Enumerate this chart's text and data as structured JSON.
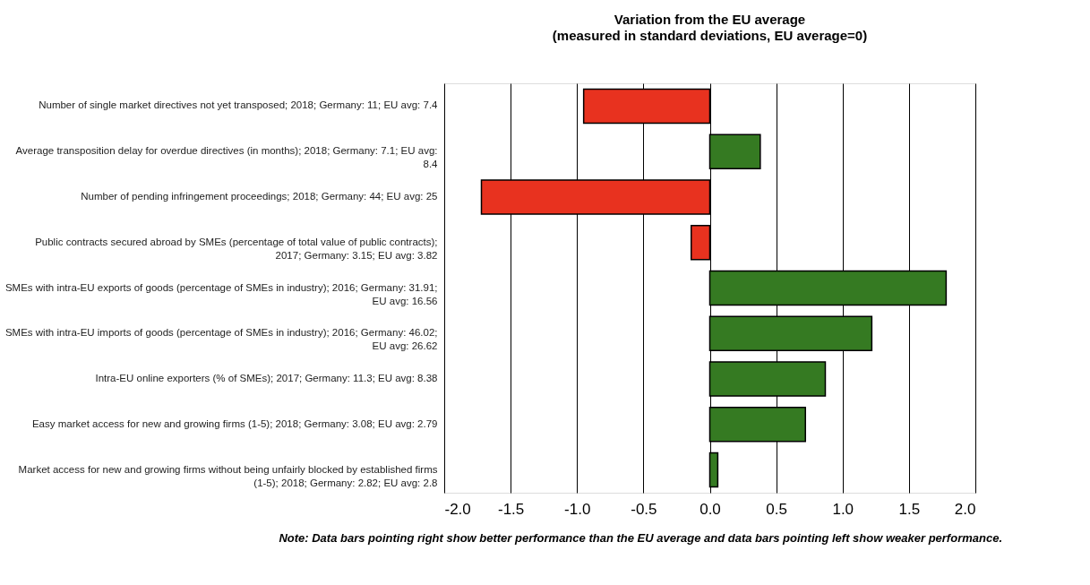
{
  "chart_data": {
    "type": "bar",
    "orientation": "horizontal",
    "title": "Variation from the EU average",
    "subtitle": "(measured in standard deviations, EU average=0)",
    "categories": [
      "Number of single market directives not yet transposed; 2018; Germany: 11; EU avg: 7.4",
      "Average transposition delay for overdue directives (in months); 2018; Germany: 7.1; EU avg: 8.4",
      "Number of pending infringement proceedings; 2018; Germany: 44; EU avg: 25",
      "Public contracts secured abroad by SMEs (percentage of total value of public contracts); 2017; Germany: 3.15; EU avg: 3.82",
      "SMEs with intra-EU exports of goods (percentage of SMEs in industry); 2016; Germany: 31.91; EU avg: 16.56",
      "SMEs with intra-EU imports of goods (percentage of SMEs in industry); 2016; Germany: 46.02; EU avg: 26.62",
      "Intra-EU online exporters (% of SMEs); 2017; Germany: 11.3; EU avg: 8.38",
      "Easy market access for new and growing firms (1-5); 2018; Germany: 3.08; EU avg: 2.79",
      "Market access for new and growing firms without being unfairly blocked by established firms (1-5); 2018; Germany: 2.82; EU avg: 2.8"
    ],
    "values": [
      -0.95,
      0.38,
      -1.72,
      -0.14,
      1.78,
      1.22,
      0.87,
      0.72,
      0.06
    ],
    "colors": [
      "#e8321f",
      "#357a22",
      "#e8321f",
      "#e8321f",
      "#357a22",
      "#357a22",
      "#357a22",
      "#357a22",
      "#357a22"
    ],
    "xlim": [
      -2.0,
      2.0
    ],
    "xticks": [
      {
        "value": -2,
        "label": "-2.0"
      },
      {
        "value": -1.5,
        "label": "-1.5"
      },
      {
        "value": -1,
        "label": "-1.0"
      },
      {
        "value": -0.5,
        "label": "-0.5"
      },
      {
        "value": 0,
        "label": "0.0"
      },
      {
        "value": 0.5,
        "label": "0.5"
      },
      {
        "value": 1,
        "label": "1.0"
      },
      {
        "value": 1.5,
        "label": "1.5"
      },
      {
        "value": 2,
        "label": "2.0"
      }
    ],
    "grid": "x",
    "annotations": [
      "Note: Data bars pointing right show better performance than the EU average and data bars pointing left show weaker performance."
    ]
  }
}
